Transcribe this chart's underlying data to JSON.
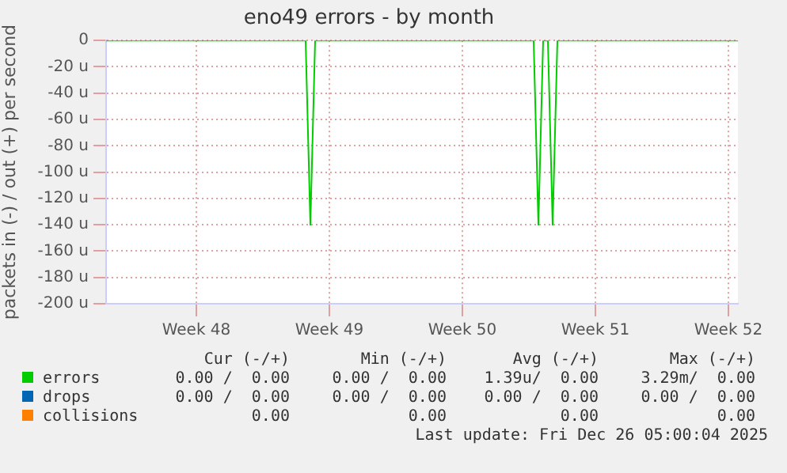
{
  "chart_data": {
    "type": "line",
    "title": "eno49 errors - by month",
    "ylabel": "packets in (-) / out (+) per second",
    "categories": [
      null,
      null,
      null,
      null,
      null,
      null,
      null,
      null,
      null,
      null,
      null,
      null,
      null,
      null,
      null,
      null,
      null,
      null,
      null,
      "Week 48",
      null,
      null,
      null,
      null,
      null,
      null,
      null,
      null,
      null,
      null,
      null,
      null,
      null,
      null,
      null,
      null,
      null,
      null,
      null,
      null,
      null,
      null,
      null,
      null,
      null,
      null,
      null,
      "Week 49",
      null,
      null,
      null,
      null,
      null,
      null,
      null,
      null,
      null,
      null,
      null,
      null,
      null,
      null,
      null,
      null,
      null,
      null,
      null,
      null,
      null,
      null,
      null,
      null,
      null,
      null,
      null,
      "Week 50",
      null,
      null,
      null,
      null,
      null,
      null,
      null,
      null,
      null,
      null,
      null,
      null,
      null,
      null,
      null,
      null,
      null,
      null,
      null,
      null,
      null,
      null,
      null,
      null,
      null,
      null,
      null,
      "Week 51",
      null,
      null,
      null,
      null,
      null,
      null,
      null,
      null,
      null,
      null,
      null,
      null,
      null,
      null,
      null,
      null,
      null,
      null,
      null,
      null,
      null,
      null,
      null,
      null,
      null,
      null,
      null,
      "Week 52",
      null,
      null
    ],
    "ylim": [
      -200,
      0
    ],
    "yticks": [
      {
        "value": -200,
        "label": "-200 u"
      },
      {
        "value": -180,
        "label": "-180 u"
      },
      {
        "value": -160,
        "label": "-160 u"
      },
      {
        "value": -140,
        "label": "-140 u"
      },
      {
        "value": -120,
        "label": "-120 u"
      },
      {
        "value": -100,
        "label": "-100 u"
      },
      {
        "value": -80,
        "label": "-80 u"
      },
      {
        "value": -60,
        "label": "-60 u"
      },
      {
        "value": -40,
        "label": "-40 u"
      },
      {
        "value": -20,
        "label": "-20 u"
      },
      0
    ],
    "grid": true,
    "legend": "bottom",
    "marker": "none",
    "line_style": "solid",
    "series": [
      {
        "name": "errors",
        "color": "#00cc00",
        "values": [
          0,
          0,
          0,
          0,
          0,
          0,
          0,
          0,
          0,
          0,
          0,
          0,
          0,
          0,
          0,
          0,
          0,
          0,
          0,
          0,
          0,
          0,
          0,
          0,
          0,
          0,
          0,
          0,
          0,
          0,
          0,
          0,
          0,
          0,
          0,
          0,
          0,
          0,
          0,
          0,
          0,
          0,
          0,
          -140,
          0,
          0,
          0,
          0,
          0,
          0,
          0,
          0,
          0,
          0,
          0,
          0,
          0,
          0,
          0,
          0,
          0,
          0,
          0,
          0,
          0,
          0,
          0,
          0,
          0,
          0,
          0,
          0,
          0,
          0,
          0,
          0,
          0,
          0,
          0,
          0,
          0,
          0,
          0,
          0,
          0,
          0,
          0,
          0,
          0,
          0,
          0,
          -140,
          0,
          0,
          -140,
          0,
          0,
          0,
          0,
          0,
          0,
          0,
          0,
          0,
          0,
          0,
          0,
          0,
          0,
          0,
          0,
          0,
          0,
          0,
          0,
          0,
          0,
          0,
          0,
          0,
          0,
          0,
          0,
          0,
          0,
          0,
          0,
          0,
          0,
          0,
          0,
          0,
          0,
          0
        ]
      },
      {
        "name": "drops",
        "color": "#0066b3",
        "values": [
          null,
          null,
          null,
          null,
          null,
          null,
          null,
          null,
          null,
          null,
          null,
          null,
          null,
          null,
          null,
          null,
          null,
          null,
          null,
          null,
          null,
          null,
          null,
          null,
          null,
          null,
          null,
          null,
          null,
          null,
          null,
          null,
          null,
          null,
          null,
          null,
          null,
          null,
          null,
          null,
          null,
          null,
          null,
          null,
          null,
          null,
          null,
          null,
          null,
          null,
          null,
          null,
          null,
          null,
          null,
          null,
          null,
          null,
          null,
          null,
          null,
          null,
          null,
          null,
          null,
          null,
          null,
          null,
          null,
          null,
          null,
          null,
          null,
          null,
          null,
          null,
          null,
          null,
          null,
          null,
          null,
          null,
          null,
          null,
          null,
          null,
          null,
          null,
          null,
          null,
          null,
          null,
          null,
          null,
          null,
          null,
          null,
          null,
          null,
          null,
          null,
          null,
          null,
          null,
          null,
          null,
          null,
          null,
          null,
          null,
          null,
          null,
          null,
          null,
          null,
          null,
          null,
          null,
          null,
          null,
          null,
          null,
          null,
          null,
          null,
          null,
          null,
          null,
          null,
          null,
          null,
          null,
          null,
          null
        ]
      },
      {
        "name": "collisions",
        "color": "#ff8000",
        "values": [
          null,
          null,
          null,
          null,
          null,
          null,
          null,
          null,
          null,
          null,
          null,
          null,
          null,
          null,
          null,
          null,
          null,
          null,
          null,
          null,
          null,
          null,
          null,
          null,
          null,
          null,
          null,
          null,
          null,
          null,
          null,
          null,
          null,
          null,
          null,
          null,
          null,
          null,
          null,
          null,
          null,
          null,
          null,
          null,
          null,
          null,
          null,
          null,
          null,
          null,
          null,
          null,
          null,
          null,
          null,
          null,
          null,
          null,
          null,
          null,
          null,
          null,
          null,
          null,
          null,
          null,
          null,
          null,
          null,
          null,
          null,
          null,
          null,
          null,
          null,
          null,
          null,
          null,
          null,
          null,
          null,
          null,
          null,
          null,
          null,
          null,
          null,
          null,
          null,
          null,
          null,
          null,
          null,
          null,
          null,
          null,
          null,
          null,
          null,
          null,
          null,
          null,
          null,
          null,
          null,
          null,
          null,
          null,
          null,
          null,
          null,
          null,
          null,
          null,
          null,
          null,
          null,
          null,
          null,
          null,
          null,
          null,
          null,
          null,
          null,
          null,
          null,
          null,
          null,
          null,
          null,
          null,
          null,
          null
        ]
      }
    ],
    "annotations": [
      "Cur (-/+)",
      "Min (-/+)",
      "Avg (-/+)",
      "Max (-/+)",
      "0.00 /  0.00",
      "0.00 /  0.00",
      "1.39u/  0.00",
      "3.29m/  0.00",
      "0.00 /  0.00",
      "0.00 /  0.00",
      "0.00 /  0.00",
      "0.00 /  0.00",
      "0.00",
      "0.00",
      "0.00",
      "0.00",
      "Last update: Fri Dec 26 05:00:04 2025"
    ]
  }
}
